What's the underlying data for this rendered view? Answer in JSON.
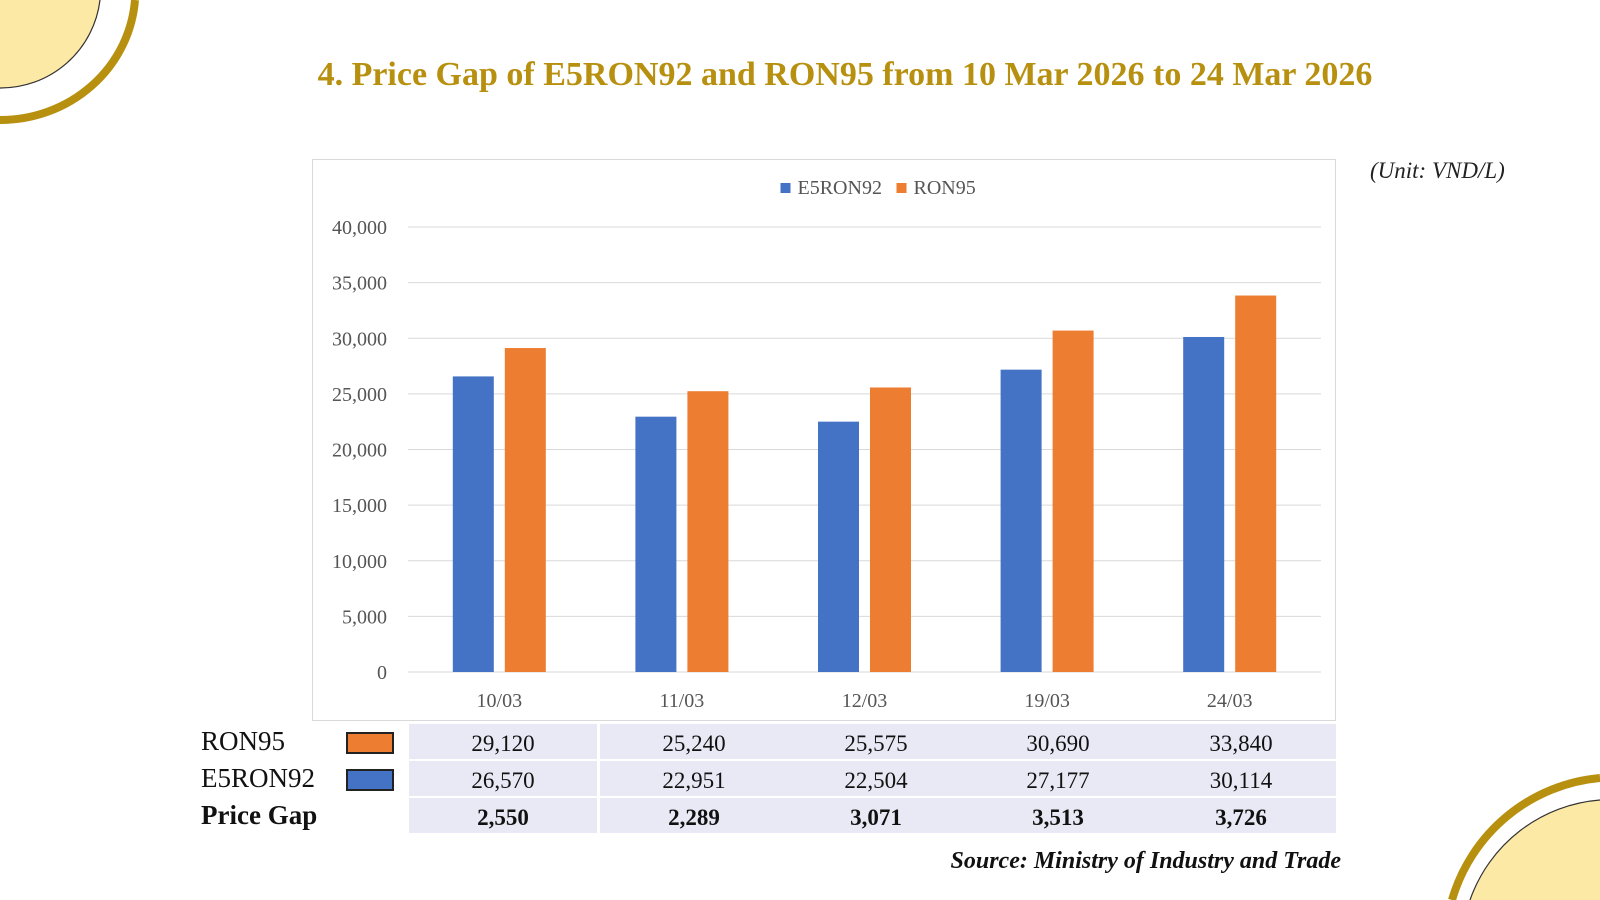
{
  "title": "4. Price Gap of E5RON92 and RON95 from 10 Mar 2026 to 24 Mar 2026",
  "unit_label": "(Unit: VND/L)",
  "source_label": "Source: Ministry of Industry and Trade",
  "colors": {
    "accent": "#b8900f",
    "corner_fill": "#fde9a6",
    "e5ron92": "#4472c4",
    "ron95": "#ed7d31",
    "table_cell": "#e8e9f4"
  },
  "chart_data": {
    "type": "bar",
    "title": "",
    "xlabel": "",
    "ylabel": "",
    "categories": [
      "10/03",
      "11/03",
      "12/03",
      "19/03",
      "24/03"
    ],
    "series": [
      {
        "name": "E5RON92",
        "color": "#4472c4",
        "values": [
          26570,
          22951,
          22504,
          27177,
          30114
        ]
      },
      {
        "name": "RON95",
        "color": "#ed7d31",
        "values": [
          29120,
          25240,
          25575,
          30690,
          33840
        ]
      }
    ],
    "ylim": [
      0,
      40000
    ],
    "yticks": [
      0,
      5000,
      10000,
      15000,
      20000,
      25000,
      30000,
      35000,
      40000
    ],
    "ytick_labels": [
      "0",
      "5,000",
      "10,000",
      "15,000",
      "20,000",
      "25,000",
      "30,000",
      "35,000",
      "40,000"
    ],
    "grid": true,
    "legend": "top-center"
  },
  "table": {
    "rows": [
      {
        "label": "RON95",
        "swatch": "#ed7d31",
        "bold": false,
        "cells": [
          "29,120",
          "25,240",
          "25,575",
          "30,690",
          "33,840"
        ]
      },
      {
        "label": "E5RON92",
        "swatch": "#4472c4",
        "bold": false,
        "cells": [
          "26,570",
          "22,951",
          "22,504",
          "27,177",
          "30,114"
        ]
      },
      {
        "label": "Price Gap",
        "swatch": null,
        "bold": true,
        "cells": [
          "2,550",
          "2,289",
          "3,071",
          "3,513",
          "3,726"
        ]
      }
    ]
  }
}
